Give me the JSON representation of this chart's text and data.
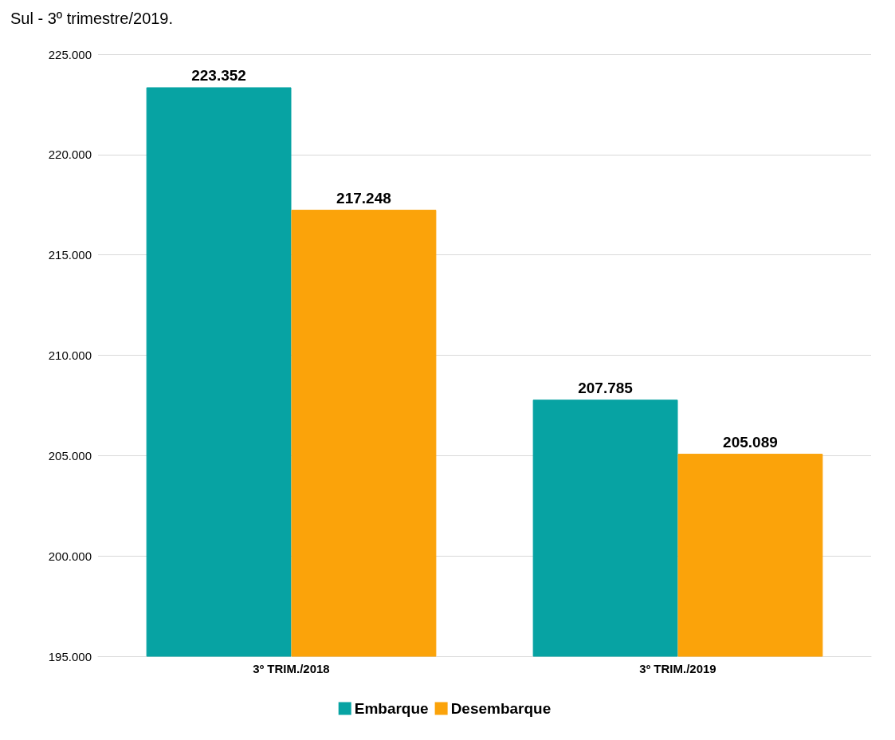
{
  "chart_data": {
    "type": "bar",
    "title": "Sul - 3º trimestre/2019.",
    "categories": [
      "3º TRIM./2018",
      "3º TRIM./2019"
    ],
    "series": [
      {
        "name": "Embarque",
        "color": "#07a3a3",
        "values": [
          223352,
          207785
        ],
        "value_labels": [
          "223.352",
          "207.785"
        ]
      },
      {
        "name": "Desembarque",
        "color": "#fba30a",
        "values": [
          217248,
          205089
        ],
        "value_labels": [
          "217.248",
          "205.089"
        ]
      }
    ],
    "ylim": [
      195000,
      225000
    ],
    "yticks": [
      {
        "value": 195000,
        "label": "195.000"
      },
      {
        "value": 200000,
        "label": "200.000"
      },
      {
        "value": 205000,
        "label": "205.000"
      },
      {
        "value": 210000,
        "label": "210.000"
      },
      {
        "value": 215000,
        "label": "215.000"
      },
      {
        "value": 220000,
        "label": "220.000"
      },
      {
        "value": 225000,
        "label": "225.000"
      }
    ],
    "grid": "y",
    "legend": "bottom"
  }
}
